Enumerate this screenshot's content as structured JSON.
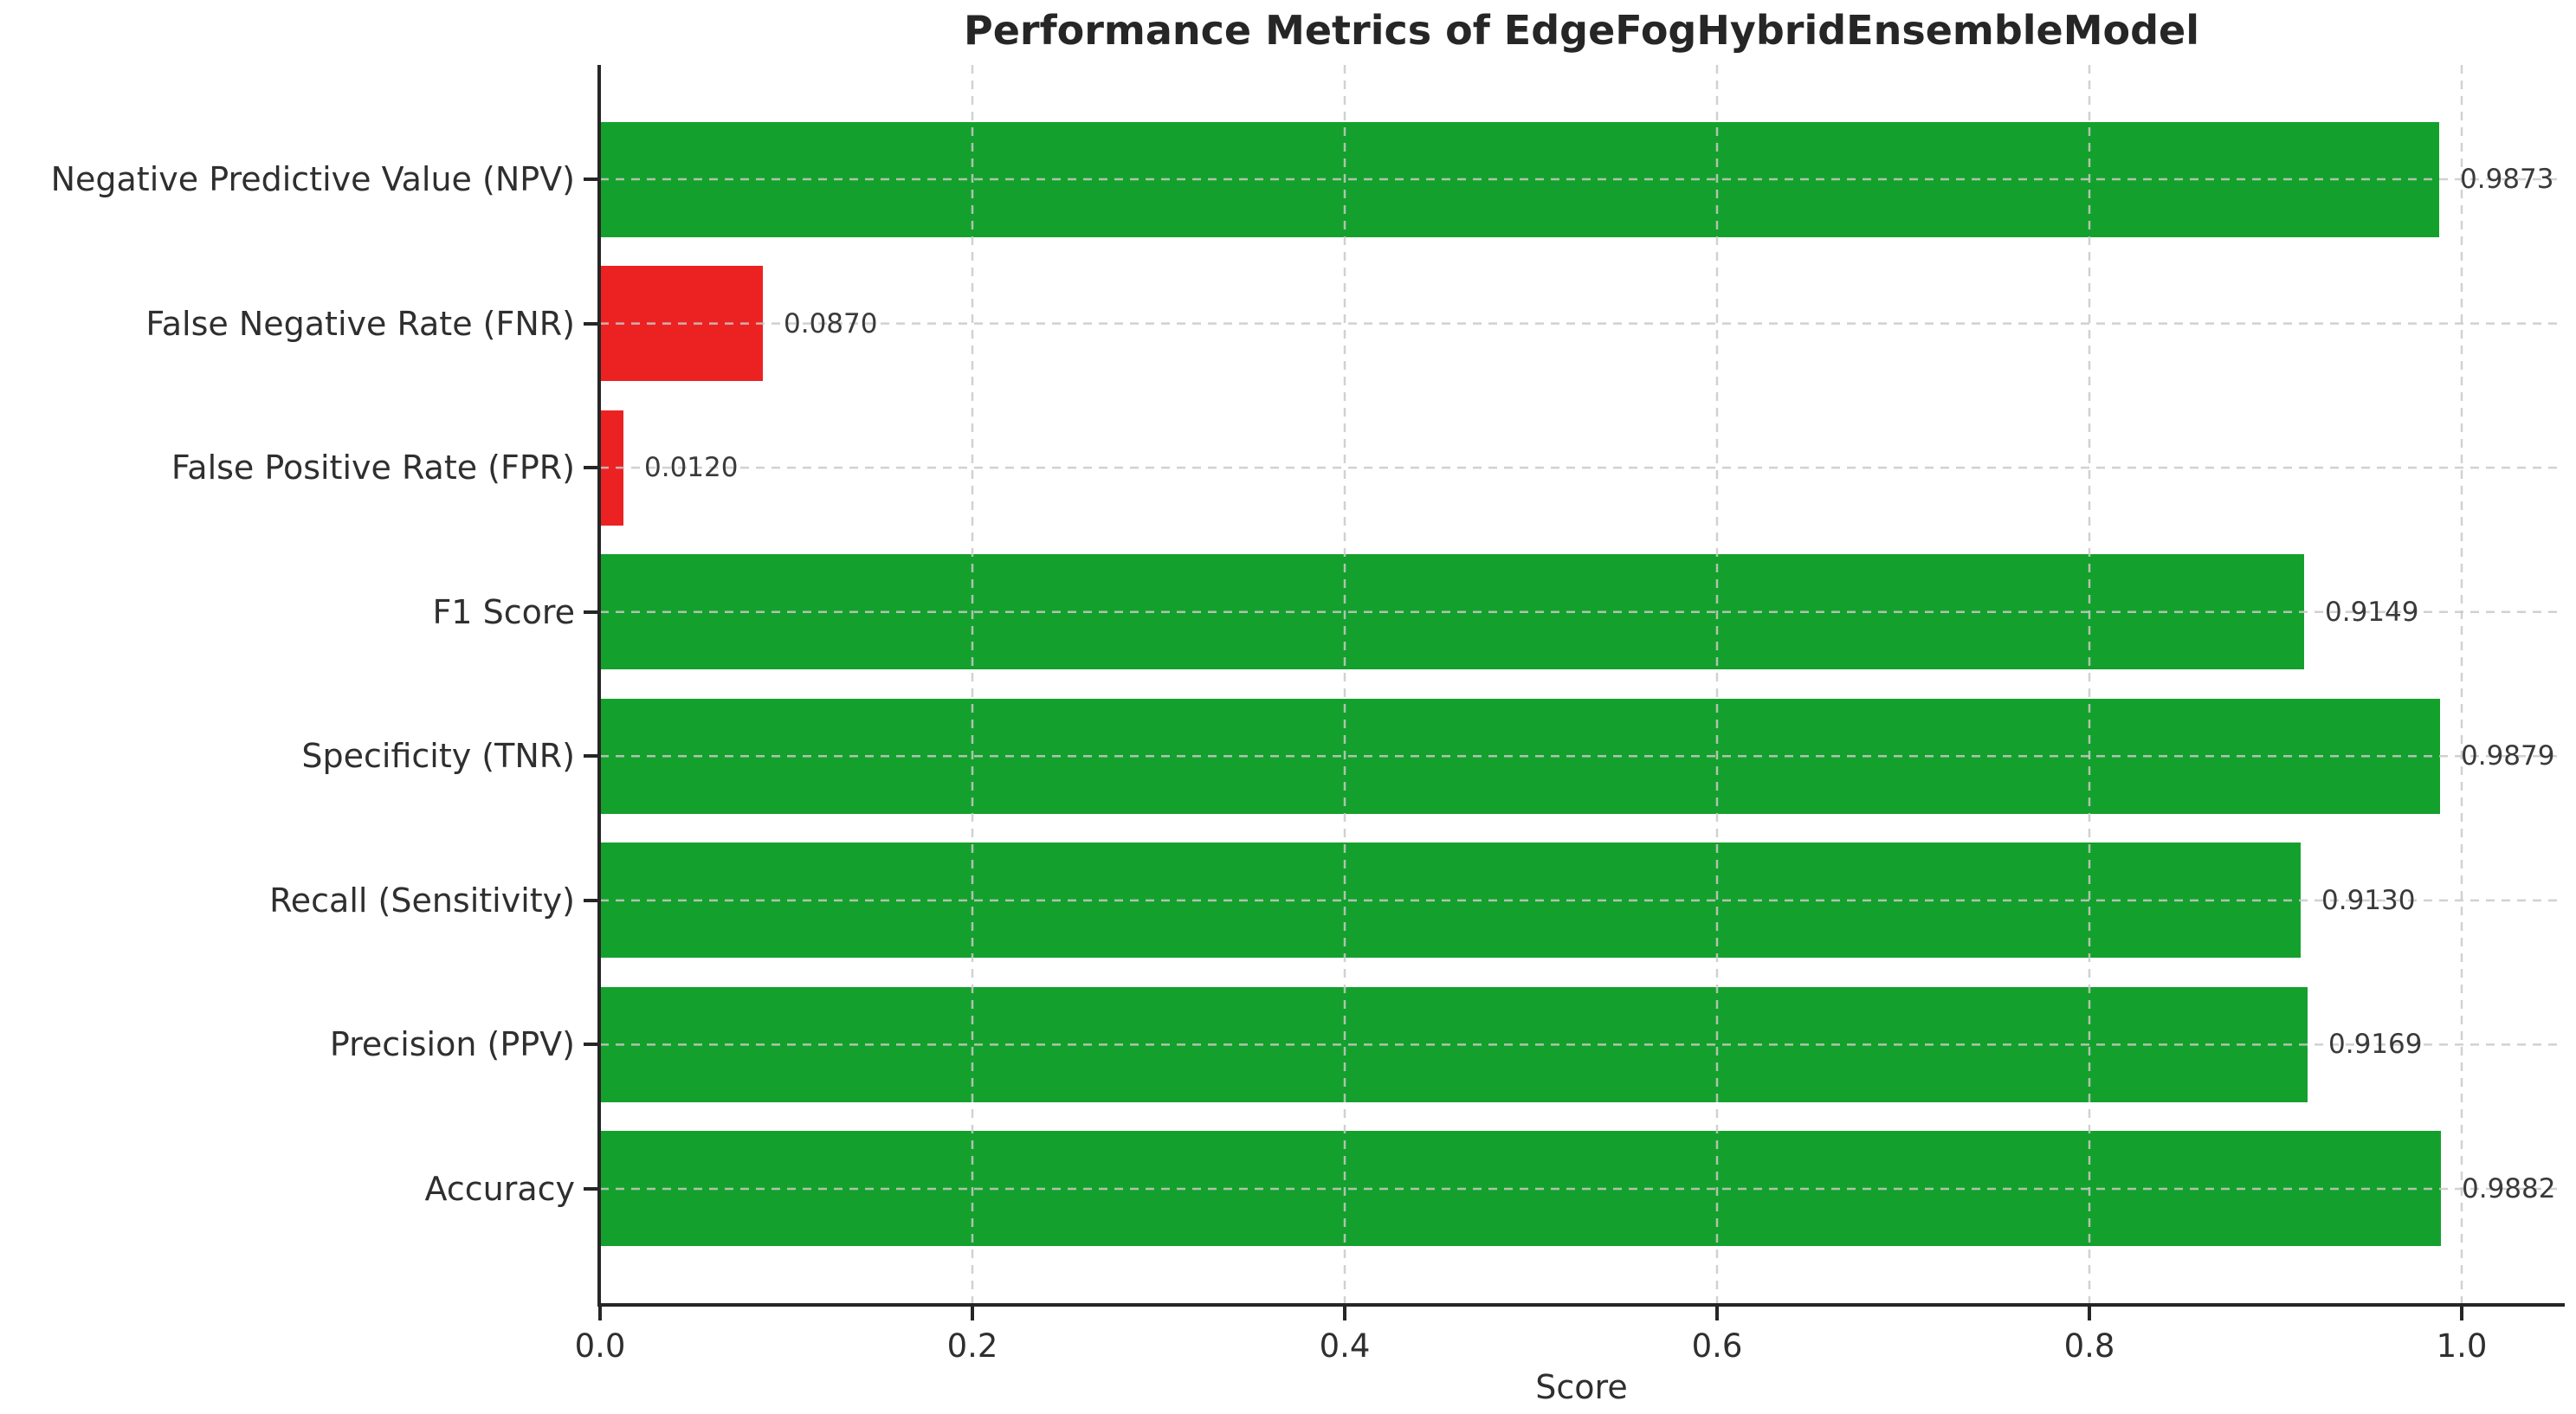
{
  "chart_data": {
    "type": "bar",
    "orientation": "horizontal",
    "title": "Performance Metrics of EdgeFogHybridEnsembleModel",
    "xlabel": "Score",
    "ylabel": "",
    "categories": [
      "Negative Predictive Value (NPV)",
      "False Negative Rate (FNR)",
      "False Positive Rate (FPR)",
      "F1 Score",
      "Specificity (TNR)",
      "Recall (Sensitivity)",
      "Precision (PPV)",
      "Accuracy"
    ],
    "values": [
      0.9873,
      0.087,
      0.012,
      0.9149,
      0.9879,
      0.913,
      0.9169,
      0.9882
    ],
    "value_labels": [
      "0.9873",
      "0.0870",
      "0.0120",
      "0.9149",
      "0.9879",
      "0.9130",
      "0.9169",
      "0.9882"
    ],
    "bar_colors": [
      "#14a02c",
      "#ec2222",
      "#ec2222",
      "#14a02c",
      "#14a02c",
      "#14a02c",
      "#14a02c",
      "#14a02c"
    ],
    "x_ticks": [
      "0.0",
      "0.2",
      "0.4",
      "0.6",
      "0.8",
      "1.0"
    ],
    "x_tick_values": [
      0.0,
      0.2,
      0.4,
      0.6,
      0.8,
      1.0
    ],
    "xlim": [
      0.0,
      1.056
    ],
    "grid": "dashed-both-axes-over-bars",
    "legend": "none",
    "colors": {
      "green_bar": "#14a02c",
      "red_bar": "#ec2222",
      "grid_line": "#c9c9c9",
      "spine": "#262626",
      "text": "#2f2f2f"
    }
  }
}
